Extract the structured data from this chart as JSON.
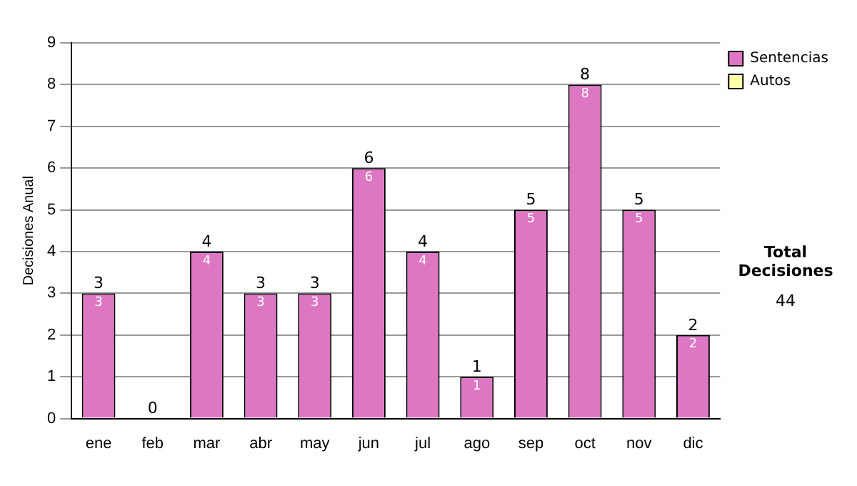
{
  "chart_data": {
    "type": "bar",
    "stacked": true,
    "ylabel": "Decisiones Anual",
    "categories": [
      "ene",
      "feb",
      "mar",
      "abr",
      "may",
      "jun",
      "jul",
      "ago",
      "sep",
      "oct",
      "nov",
      "dic"
    ],
    "series": [
      {
        "name": "Sentencias",
        "color": "#dd77c4",
        "values": [
          3,
          0,
          4,
          3,
          3,
          6,
          4,
          1,
          5,
          8,
          5,
          2
        ],
        "value_labels": [
          "3",
          null,
          "4",
          "3",
          "3",
          "6",
          "4",
          "1",
          "5",
          "8",
          "5",
          "2"
        ]
      },
      {
        "name": "Autos",
        "color": "#ffffaa",
        "values": [
          0,
          0,
          0,
          0,
          0,
          0,
          0,
          0,
          0,
          0,
          0,
          0
        ]
      }
    ],
    "totals": [
      "3",
      "0",
      "4",
      "3",
      "3",
      "6",
      "4",
      "1",
      "5",
      "8",
      "5",
      "2"
    ],
    "ylim": [
      0,
      9
    ],
    "yticks": [
      0,
      1,
      2,
      3,
      4,
      5,
      6,
      7,
      8,
      9
    ],
    "grid": "y",
    "legend": "right",
    "annotations": [
      "Total Decisiones",
      "44"
    ]
  }
}
